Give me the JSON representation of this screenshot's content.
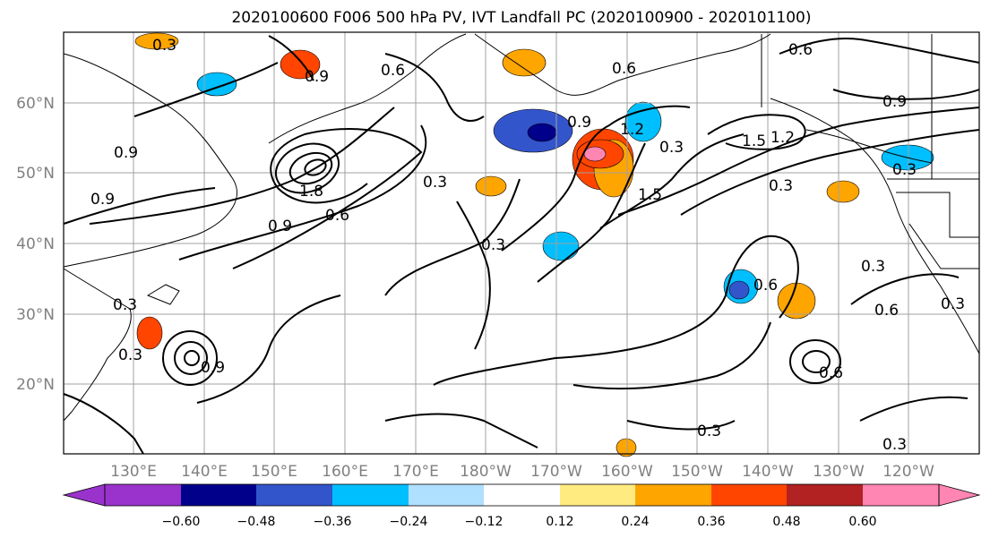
{
  "title": "2020100600 F006 500 hPa PV, IVT Landfall PC (2020100900 - 2020101100)",
  "map": {
    "lat_labels": [
      "60°N",
      "50°N",
      "40°N",
      "30°N",
      "20°N"
    ],
    "lon_labels": [
      "130°E",
      "140°E",
      "150°E",
      "160°E",
      "170°E",
      "180°W",
      "170°W",
      "160°W",
      "150°W",
      "140°W",
      "130°W",
      "120°W"
    ],
    "contour_labels": [
      "0.3",
      "0.6",
      "0.9",
      "0.6",
      "0.9",
      "1.2",
      "1.5",
      "0.3",
      "0.9",
      "0.6",
      "1.8",
      "0.9",
      "0.3",
      "0.3",
      "0.3",
      "0.6",
      "0.3",
      "0.9",
      "1.2",
      "1.5",
      "0.9",
      "0.6",
      "0.3",
      "0.3",
      "0.6",
      "0.3",
      "0.3",
      "0.9",
      "0.6",
      "0.3",
      "0.3"
    ],
    "colors": {
      "land_outline": "#000000",
      "grid": "#a0a0a0",
      "contour": "#000000"
    }
  },
  "colorbar": {
    "ticks": [
      "−0.60",
      "−0.48",
      "−0.36",
      "−0.24",
      "−0.12",
      "0.12",
      "0.24",
      "0.36",
      "0.48",
      "0.60"
    ],
    "colors": [
      "#9933cc",
      "#00008b",
      "#3355cc",
      "#00bfff",
      "#b0e0ff",
      "#ffffff",
      "#ffeb80",
      "#ffa500",
      "#ff4500",
      "#b22222",
      "#ff85b3"
    ]
  },
  "anomalies": [
    {
      "color": "#ffa500"
    },
    {
      "color": "#ff4500"
    },
    {
      "color": "#00bfff"
    },
    {
      "color": "#3355cc"
    },
    {
      "color": "#ffa500"
    },
    {
      "color": "#ff4500"
    },
    {
      "color": "#00bfff"
    },
    {
      "color": "#00008b"
    },
    {
      "color": "#ffa500"
    },
    {
      "color": "#ff4500"
    },
    {
      "color": "#ff85b3"
    },
    {
      "color": "#00bfff"
    },
    {
      "color": "#ffa500"
    },
    {
      "color": "#00bfff"
    },
    {
      "color": "#3355cc"
    },
    {
      "color": "#ffa500"
    },
    {
      "color": "#ff4500"
    },
    {
      "color": "#ffa500"
    },
    {
      "color": "#00bfff"
    },
    {
      "color": "#ffa500"
    }
  ]
}
